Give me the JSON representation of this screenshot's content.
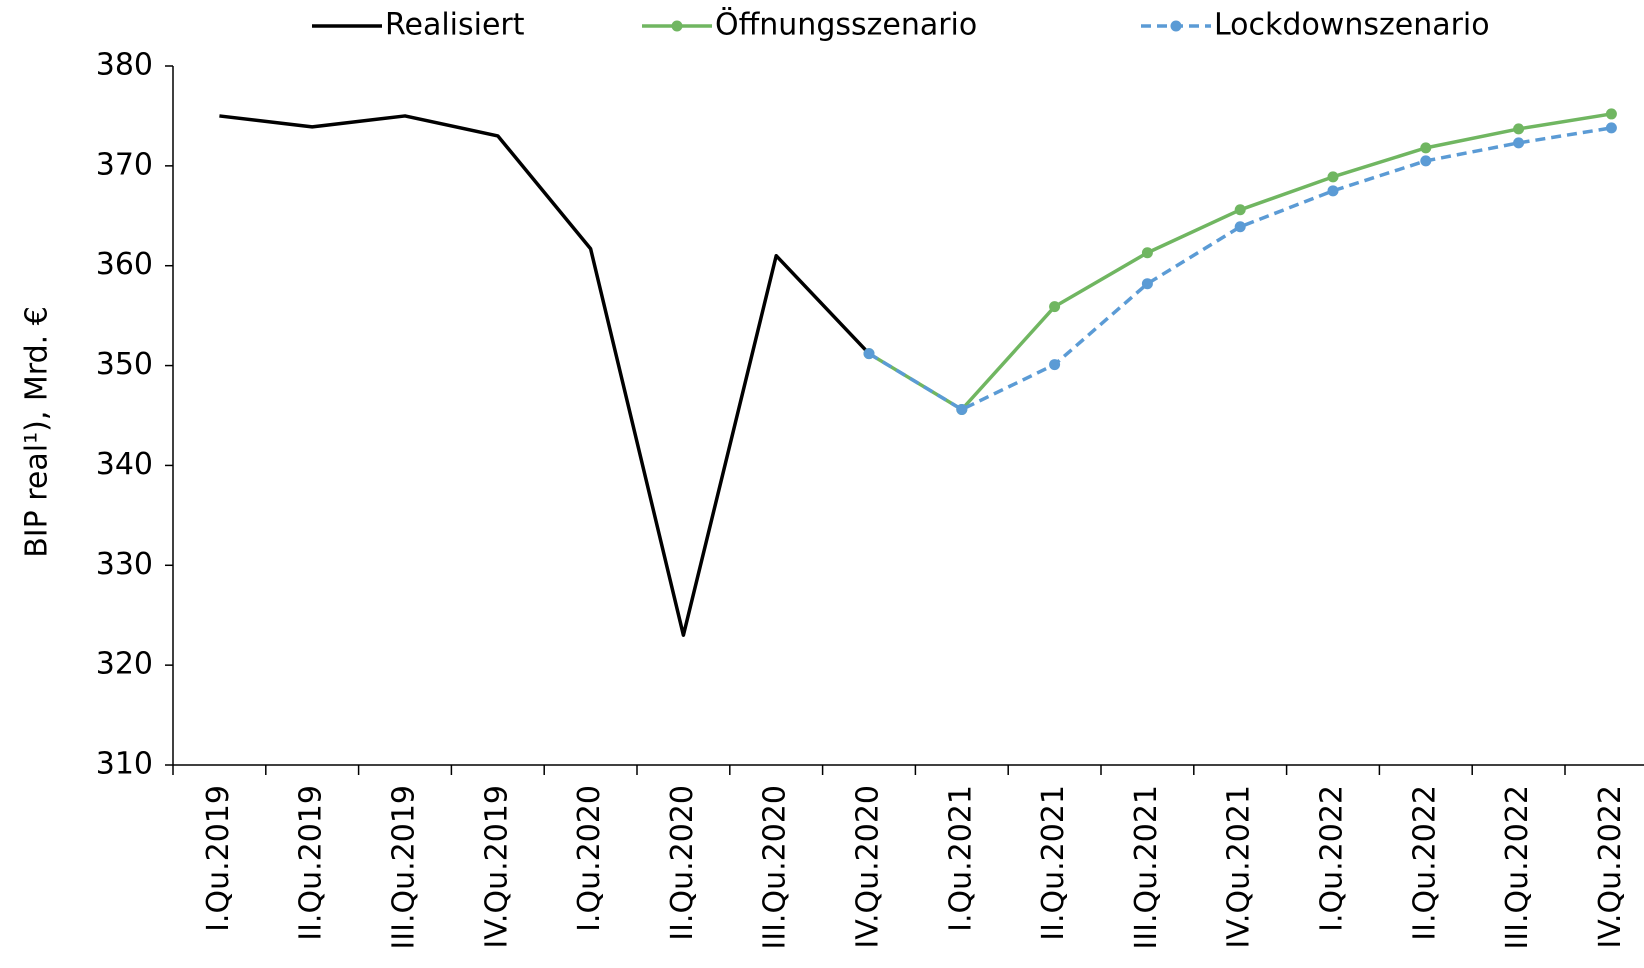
{
  "chart_data": {
    "type": "line",
    "y_label": "BIP real¹), Mrd. €",
    "categories": [
      "I.Qu.2019",
      "II.Qu.2019",
      "III.Qu.2019",
      "IV.Qu.2019",
      "I.Qu.2020",
      "II.Qu.2020",
      "III.Qu.2020",
      "IV.Qu.2020",
      "I.Qu.2021",
      "II.Qu.2021",
      "III.Qu.2021",
      "IV.Qu.2021",
      "I.Qu.2022",
      "II.Qu.2022",
      "III.Qu.2022",
      "IV.Qu.2022"
    ],
    "series": [
      {
        "name": "Realisiert",
        "color": "#000000",
        "dash": false,
        "markers": false,
        "values": [
          375,
          373.9,
          375,
          373,
          361.7,
          323,
          361,
          351.2,
          null,
          null,
          null,
          null,
          null,
          null,
          null,
          null
        ]
      },
      {
        "name": "Öffnungsszenario",
        "color": "#70b661",
        "dash": false,
        "markers": true,
        "values": [
          null,
          null,
          null,
          null,
          null,
          null,
          null,
          351.2,
          345.6,
          355.9,
          361.3,
          365.6,
          368.9,
          371.8,
          373.7,
          375.2
        ]
      },
      {
        "name": "Lockdownszenario",
        "color": "#5b9bd5",
        "dash": true,
        "markers": true,
        "values": [
          null,
          null,
          null,
          null,
          null,
          null,
          null,
          351.2,
          345.6,
          350.1,
          358.2,
          363.9,
          367.5,
          370.5,
          372.3,
          373.8
        ]
      }
    ],
    "ylim": [
      310,
      380
    ],
    "yticks": [
      310,
      320,
      330,
      340,
      350,
      360,
      370,
      380
    ],
    "grid": false,
    "legend": "top"
  }
}
